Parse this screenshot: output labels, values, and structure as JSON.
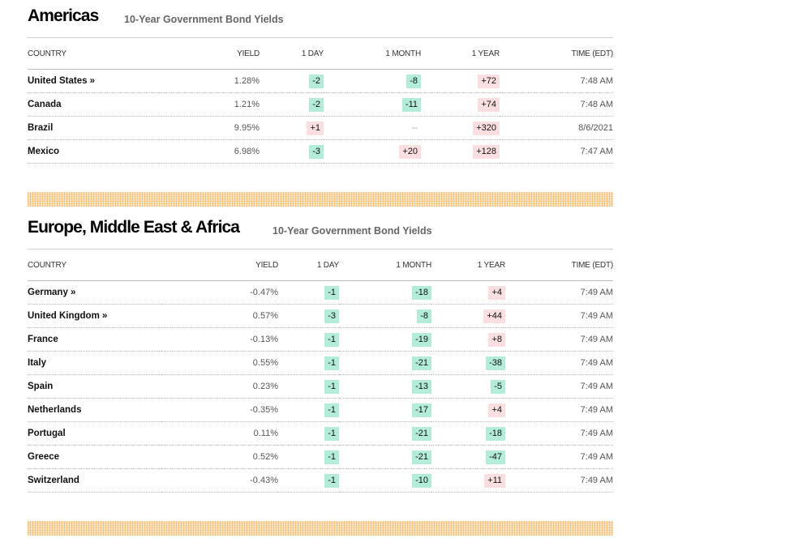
{
  "americas": {
    "title": "Americas",
    "subtitle": "10-Year Government Bond Yields",
    "columns": [
      "COUNTRY",
      "YIELD",
      "1 DAY",
      "1 MONTH",
      "1 YEAR",
      "TIME (EDT)"
    ],
    "rows": [
      {
        "country": "United States »",
        "yield": "1.28%",
        "day": "-2",
        "day_dir": "down",
        "month": "-8",
        "month_dir": "down",
        "year": "+72",
        "year_dir": "up",
        "time": "7:48 AM"
      },
      {
        "country": "Canada",
        "yield": "1.21%",
        "day": "-2",
        "day_dir": "down",
        "month": "-11",
        "month_dir": "down",
        "year": "+74",
        "year_dir": "up",
        "time": "7:48 AM"
      },
      {
        "country": "Brazil",
        "yield": "9.95%",
        "day": "+1",
        "day_dir": "up",
        "month": "--",
        "month_dir": "none",
        "year": "+320",
        "year_dir": "up",
        "time": "8/6/2021"
      },
      {
        "country": "Mexico",
        "yield": "6.98%",
        "day": "-3",
        "day_dir": "down",
        "month": "+20",
        "month_dir": "up",
        "year": "+128",
        "year_dir": "up",
        "time": "7:47 AM"
      }
    ]
  },
  "emea": {
    "title": "Europe, Middle East & Africa",
    "subtitle": "10-Year Government Bond Yields",
    "columns": [
      "COUNTRY",
      "YIELD",
      "1 DAY",
      "1 MONTH",
      "1 YEAR",
      "TIME (EDT)"
    ],
    "rows": [
      {
        "country": "Germany »",
        "yield": "-0.47%",
        "day": "-1",
        "day_dir": "down",
        "month": "-18",
        "month_dir": "down",
        "year": "+4",
        "year_dir": "up",
        "time": "7:49 AM"
      },
      {
        "country": "United Kingdom »",
        "yield": "0.57%",
        "day": "-3",
        "day_dir": "down",
        "month": "-8",
        "month_dir": "down",
        "year": "+44",
        "year_dir": "up",
        "time": "7:49 AM"
      },
      {
        "country": "France",
        "yield": "-0.13%",
        "day": "-1",
        "day_dir": "down",
        "month": "-19",
        "month_dir": "down",
        "year": "+8",
        "year_dir": "up",
        "time": "7:49 AM"
      },
      {
        "country": "Italy",
        "yield": "0.55%",
        "day": "-1",
        "day_dir": "down",
        "month": "-21",
        "month_dir": "down",
        "year": "-38",
        "year_dir": "down",
        "time": "7:49 AM"
      },
      {
        "country": "Spain",
        "yield": "0.23%",
        "day": "-1",
        "day_dir": "down",
        "month": "-13",
        "month_dir": "down",
        "year": "-5",
        "year_dir": "down",
        "time": "7:49 AM"
      },
      {
        "country": "Netherlands",
        "yield": "-0.35%",
        "day": "-1",
        "day_dir": "down",
        "month": "-17",
        "month_dir": "down",
        "year": "+4",
        "year_dir": "up",
        "time": "7:49 AM"
      },
      {
        "country": "Portugal",
        "yield": "0.11%",
        "day": "-1",
        "day_dir": "down",
        "month": "-21",
        "month_dir": "down",
        "year": "-18",
        "year_dir": "down",
        "time": "7:49 AM"
      },
      {
        "country": "Greece",
        "yield": "0.52%",
        "day": "-1",
        "day_dir": "down",
        "month": "-21",
        "month_dir": "down",
        "year": "-47",
        "year_dir": "down",
        "time": "7:49 AM"
      },
      {
        "country": "Switzerland",
        "yield": "-0.43%",
        "day": "-1",
        "day_dir": "down",
        "month": "-10",
        "month_dir": "down",
        "year": "+11",
        "year_dir": "up",
        "time": "7:49 AM"
      }
    ]
  },
  "colors": {
    "down": "#b3ecd9",
    "up": "#fbdfe0",
    "stripe": "#f0c383"
  }
}
